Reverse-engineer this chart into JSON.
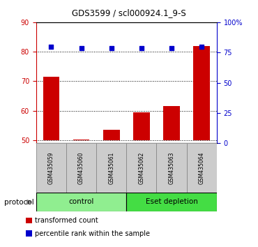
{
  "title": "GDS3599 / scl000924.1_9-S",
  "categories": [
    "GSM435059",
    "GSM435060",
    "GSM435061",
    "GSM435062",
    "GSM435063",
    "GSM435064"
  ],
  "transformed_counts": [
    71.5,
    50.2,
    53.5,
    59.5,
    61.5,
    82.0
  ],
  "percentile_ranks": [
    80.0,
    78.5,
    78.5,
    78.5,
    78.5,
    80.0
  ],
  "ylim_left": [
    49,
    90
  ],
  "ylim_right": [
    0,
    100
  ],
  "yticks_left": [
    50,
    60,
    70,
    80,
    90
  ],
  "yticks_right": [
    0,
    25,
    50,
    75,
    100
  ],
  "ytick_labels_right": [
    "0",
    "25",
    "50",
    "75",
    "100%"
  ],
  "bar_color": "#cc0000",
  "scatter_color": "#0000cc",
  "bar_bottom": 50,
  "groups": [
    {
      "label": "control",
      "indices": [
        0,
        1,
        2
      ],
      "color": "#90ee90"
    },
    {
      "label": "Eset depletion",
      "indices": [
        3,
        4,
        5
      ],
      "color": "#44dd44"
    }
  ],
  "protocol_label": "protocol",
  "legend_items": [
    {
      "color": "#cc0000",
      "label": "transformed count"
    },
    {
      "color": "#0000cc",
      "label": "percentile rank within the sample"
    }
  ],
  "grid_color": "black",
  "tick_label_color_left": "#cc0000",
  "tick_label_color_right": "#0000cc",
  "label_box_color": "#cccccc",
  "label_box_edge": "#888888"
}
